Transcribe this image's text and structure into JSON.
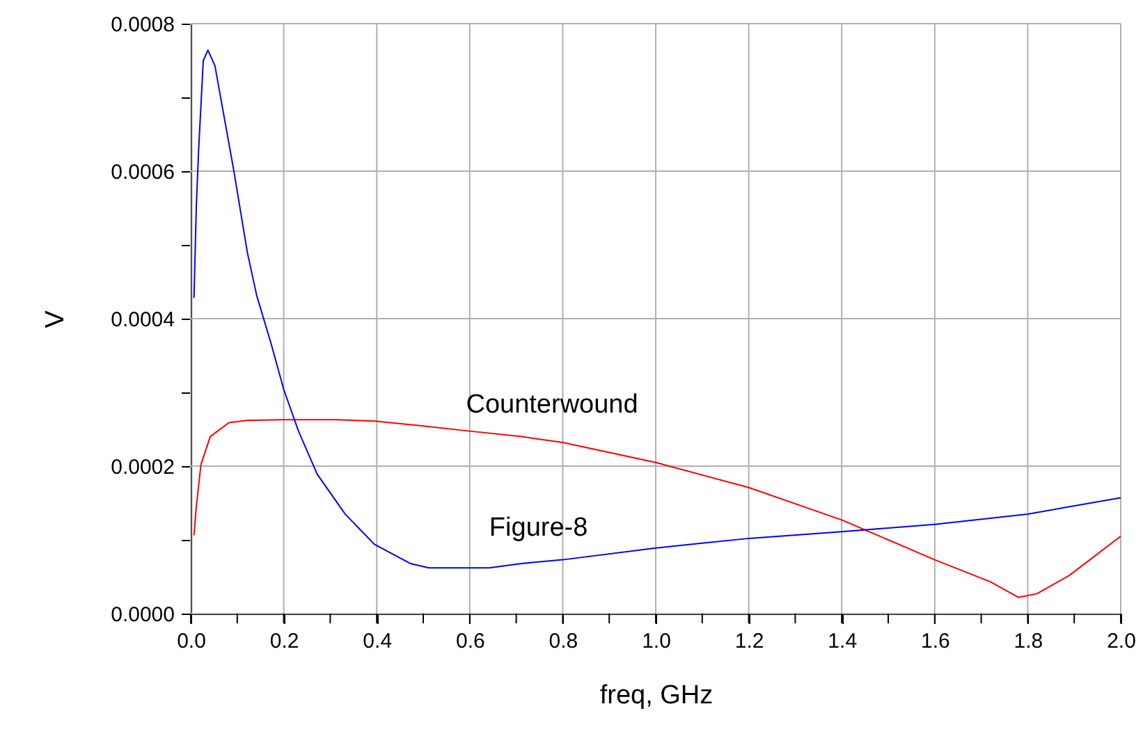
{
  "chart_data": {
    "type": "line",
    "xlabel": "freq, GHz",
    "ylabel": "V",
    "xlim": [
      0,
      2
    ],
    "ylim": [
      0,
      0.0008
    ],
    "xticks": [
      {
        "value": 0,
        "label": "0.0"
      },
      {
        "value": 0.1,
        "label": null
      },
      {
        "value": 0.2,
        "label": "0.2"
      },
      {
        "value": 0.3,
        "label": null
      },
      {
        "value": 0.4,
        "label": "0.4"
      },
      {
        "value": 0.5,
        "label": null
      },
      {
        "value": 0.6,
        "label": "0.6"
      },
      {
        "value": 0.7,
        "label": null
      },
      {
        "value": 0.8,
        "label": "0.8"
      },
      {
        "value": 0.9,
        "label": null
      },
      {
        "value": 1,
        "label": "1.0"
      },
      {
        "value": 1.1,
        "label": null
      },
      {
        "value": 1.2,
        "label": "1.2"
      },
      {
        "value": 1.3,
        "label": null
      },
      {
        "value": 1.4,
        "label": "1.4"
      },
      {
        "value": 1.5,
        "label": null
      },
      {
        "value": 1.6,
        "label": "1.6"
      },
      {
        "value": 1.7,
        "label": null
      },
      {
        "value": 1.8,
        "label": "1.8"
      },
      {
        "value": 1.9,
        "label": null
      },
      {
        "value": 2,
        "label": "2.0"
      }
    ],
    "yticks": [
      {
        "value": 0,
        "label": "0.0000"
      },
      {
        "value": 0.0001,
        "label": null
      },
      {
        "value": 0.0002,
        "label": "0.0002"
      },
      {
        "value": 0.0003,
        "label": null
      },
      {
        "value": 0.0004,
        "label": "0.0004"
      },
      {
        "value": 0.0005,
        "label": null
      },
      {
        "value": 0.0006,
        "label": "0.0006"
      },
      {
        "value": 0.0007,
        "label": null
      },
      {
        "value": 0.0008,
        "label": "0.0008"
      }
    ],
    "grid": true,
    "legend": false,
    "marker": "none",
    "line_style": "solid",
    "series": [
      {
        "name": "Counterwound",
        "color": "#ff0000",
        "x": [
          0.007,
          0.012,
          0.022,
          0.042,
          0.082,
          0.122,
          0.2,
          0.312,
          0.395,
          0.492,
          0.592,
          0.712,
          0.8,
          1.0,
          1.2,
          1.4,
          1.6,
          1.72,
          1.78,
          1.82,
          1.89,
          2.0
        ],
        "values": [
          0.000106,
          0.000145,
          0.000202,
          0.00024,
          0.000259,
          0.000262,
          0.000263,
          0.000263,
          0.000261,
          0.000255,
          0.000248,
          0.00024,
          0.000232,
          0.000205,
          0.000171,
          0.000127,
          7.3e-05,
          4.3e-05,
          2.2e-05,
          2.7e-05,
          5.2e-05,
          0.000105
        ]
      },
      {
        "name": "Figure-8",
        "color": "#0000ff",
        "x": [
          0.007,
          0.012,
          0.017,
          0.027,
          0.037,
          0.052,
          0.072,
          0.092,
          0.122,
          0.142,
          0.172,
          0.2,
          0.232,
          0.272,
          0.332,
          0.395,
          0.472,
          0.512,
          0.642,
          0.712,
          0.8,
          1.0,
          1.2,
          1.4,
          1.6,
          1.8,
          2.0
        ],
        "values": [
          0.000428,
          0.000552,
          0.000629,
          0.00075,
          0.000764,
          0.000743,
          0.000673,
          0.000603,
          0.000489,
          0.000431,
          0.000368,
          0.000304,
          0.000247,
          0.000189,
          0.000135,
          9.4e-05,
          6.8e-05,
          6.2e-05,
          6.2e-05,
          6.8e-05,
          7.3e-05,
          8.9e-05,
          0.000102,
          0.000111,
          0.000121,
          0.000135,
          0.000157
        ]
      }
    ]
  }
}
